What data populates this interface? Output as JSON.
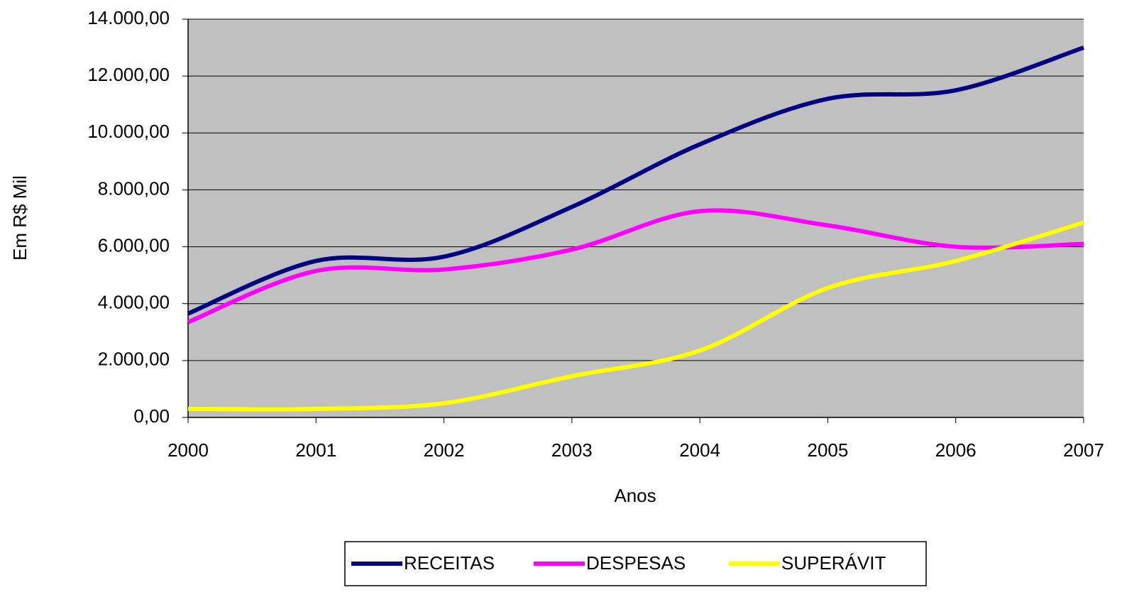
{
  "chart_data": {
    "type": "line",
    "x_label": "Anos",
    "y_label": "Em R$ Mil",
    "x": [
      2000,
      2001,
      2002,
      2003,
      2004,
      2005,
      2006,
      2007
    ],
    "series": [
      {
        "name": "RECEITAS",
        "color": "#000080",
        "values": [
          3650,
          5500,
          5650,
          7400,
          9600,
          11200,
          11500,
          13000
        ]
      },
      {
        "name": "DESPESAS",
        "color": "#ff00ff",
        "values": [
          3350,
          5150,
          5200,
          5900,
          7250,
          6750,
          6000,
          6100
        ]
      },
      {
        "name": "SUPERÁVIT",
        "color": "#ffff00",
        "values": [
          300,
          300,
          500,
          1450,
          2350,
          4550,
          5500,
          6850
        ]
      }
    ],
    "xlim": [
      2000,
      2007
    ],
    "xticks": [
      2000,
      2001,
      2002,
      2003,
      2004,
      2005,
      2006,
      2007
    ],
    "ylim": [
      0,
      14000
    ],
    "yticks": [
      {
        "value": 0,
        "label": "0,00"
      },
      {
        "value": 2000,
        "label": "2.000,00"
      },
      {
        "value": 4000,
        "label": "4.000,00"
      },
      {
        "value": 6000,
        "label": "6.000,00"
      },
      {
        "value": 8000,
        "label": "8.000,00"
      },
      {
        "value": 10000,
        "label": "10.000,00"
      },
      {
        "value": 12000,
        "label": "12.000,00"
      },
      {
        "value": 14000,
        "label": "14.000,00"
      }
    ],
    "grid": true,
    "plot_background": "#c0c0c0",
    "legend": "bottom"
  }
}
